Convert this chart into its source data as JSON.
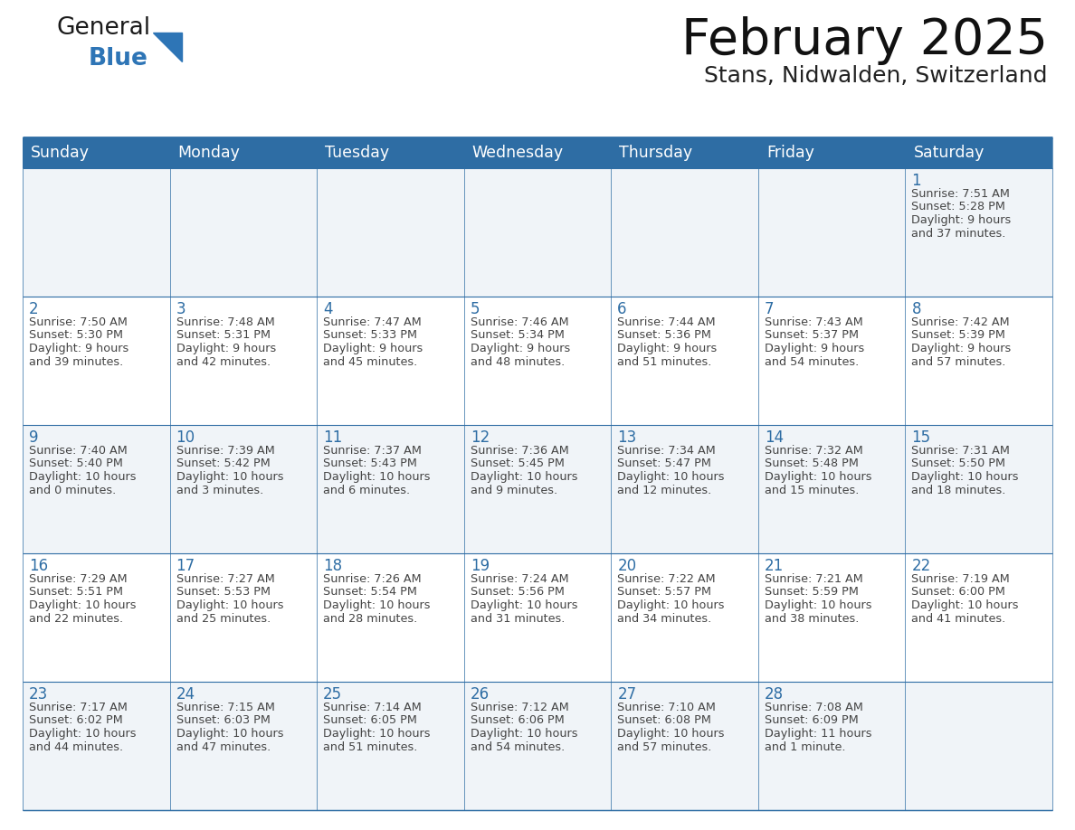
{
  "title": "February 2025",
  "subtitle": "Stans, Nidwalden, Switzerland",
  "days_of_week": [
    "Sunday",
    "Monday",
    "Tuesday",
    "Wednesday",
    "Thursday",
    "Friday",
    "Saturday"
  ],
  "header_bg": "#2E6DA4",
  "header_text": "#FFFFFF",
  "cell_bg_odd": "#FFFFFF",
  "cell_bg_even": "#F0F4F8",
  "border_color": "#2E6DA4",
  "day_number_color": "#2E6DA4",
  "text_color": "#444444",
  "logo_general_color": "#1a1a1a",
  "logo_blue_color": "#2E75B6",
  "calendar_data": [
    [
      null,
      null,
      null,
      null,
      null,
      null,
      {
        "day": 1,
        "sunrise": "7:51 AM",
        "sunset": "5:28 PM",
        "daylight": "9 hours\nand 37 minutes."
      }
    ],
    [
      {
        "day": 2,
        "sunrise": "7:50 AM",
        "sunset": "5:30 PM",
        "daylight": "9 hours\nand 39 minutes."
      },
      {
        "day": 3,
        "sunrise": "7:48 AM",
        "sunset": "5:31 PM",
        "daylight": "9 hours\nand 42 minutes."
      },
      {
        "day": 4,
        "sunrise": "7:47 AM",
        "sunset": "5:33 PM",
        "daylight": "9 hours\nand 45 minutes."
      },
      {
        "day": 5,
        "sunrise": "7:46 AM",
        "sunset": "5:34 PM",
        "daylight": "9 hours\nand 48 minutes."
      },
      {
        "day": 6,
        "sunrise": "7:44 AM",
        "sunset": "5:36 PM",
        "daylight": "9 hours\nand 51 minutes."
      },
      {
        "day": 7,
        "sunrise": "7:43 AM",
        "sunset": "5:37 PM",
        "daylight": "9 hours\nand 54 minutes."
      },
      {
        "day": 8,
        "sunrise": "7:42 AM",
        "sunset": "5:39 PM",
        "daylight": "9 hours\nand 57 minutes."
      }
    ],
    [
      {
        "day": 9,
        "sunrise": "7:40 AM",
        "sunset": "5:40 PM",
        "daylight": "10 hours\nand 0 minutes."
      },
      {
        "day": 10,
        "sunrise": "7:39 AM",
        "sunset": "5:42 PM",
        "daylight": "10 hours\nand 3 minutes."
      },
      {
        "day": 11,
        "sunrise": "7:37 AM",
        "sunset": "5:43 PM",
        "daylight": "10 hours\nand 6 minutes."
      },
      {
        "day": 12,
        "sunrise": "7:36 AM",
        "sunset": "5:45 PM",
        "daylight": "10 hours\nand 9 minutes."
      },
      {
        "day": 13,
        "sunrise": "7:34 AM",
        "sunset": "5:47 PM",
        "daylight": "10 hours\nand 12 minutes."
      },
      {
        "day": 14,
        "sunrise": "7:32 AM",
        "sunset": "5:48 PM",
        "daylight": "10 hours\nand 15 minutes."
      },
      {
        "day": 15,
        "sunrise": "7:31 AM",
        "sunset": "5:50 PM",
        "daylight": "10 hours\nand 18 minutes."
      }
    ],
    [
      {
        "day": 16,
        "sunrise": "7:29 AM",
        "sunset": "5:51 PM",
        "daylight": "10 hours\nand 22 minutes."
      },
      {
        "day": 17,
        "sunrise": "7:27 AM",
        "sunset": "5:53 PM",
        "daylight": "10 hours\nand 25 minutes."
      },
      {
        "day": 18,
        "sunrise": "7:26 AM",
        "sunset": "5:54 PM",
        "daylight": "10 hours\nand 28 minutes."
      },
      {
        "day": 19,
        "sunrise": "7:24 AM",
        "sunset": "5:56 PM",
        "daylight": "10 hours\nand 31 minutes."
      },
      {
        "day": 20,
        "sunrise": "7:22 AM",
        "sunset": "5:57 PM",
        "daylight": "10 hours\nand 34 minutes."
      },
      {
        "day": 21,
        "sunrise": "7:21 AM",
        "sunset": "5:59 PM",
        "daylight": "10 hours\nand 38 minutes."
      },
      {
        "day": 22,
        "sunrise": "7:19 AM",
        "sunset": "6:00 PM",
        "daylight": "10 hours\nand 41 minutes."
      }
    ],
    [
      {
        "day": 23,
        "sunrise": "7:17 AM",
        "sunset": "6:02 PM",
        "daylight": "10 hours\nand 44 minutes."
      },
      {
        "day": 24,
        "sunrise": "7:15 AM",
        "sunset": "6:03 PM",
        "daylight": "10 hours\nand 47 minutes."
      },
      {
        "day": 25,
        "sunrise": "7:14 AM",
        "sunset": "6:05 PM",
        "daylight": "10 hours\nand 51 minutes."
      },
      {
        "day": 26,
        "sunrise": "7:12 AM",
        "sunset": "6:06 PM",
        "daylight": "10 hours\nand 54 minutes."
      },
      {
        "day": 27,
        "sunrise": "7:10 AM",
        "sunset": "6:08 PM",
        "daylight": "10 hours\nand 57 minutes."
      },
      {
        "day": 28,
        "sunrise": "7:08 AM",
        "sunset": "6:09 PM",
        "daylight": "11 hours\nand 1 minute."
      },
      null
    ]
  ]
}
